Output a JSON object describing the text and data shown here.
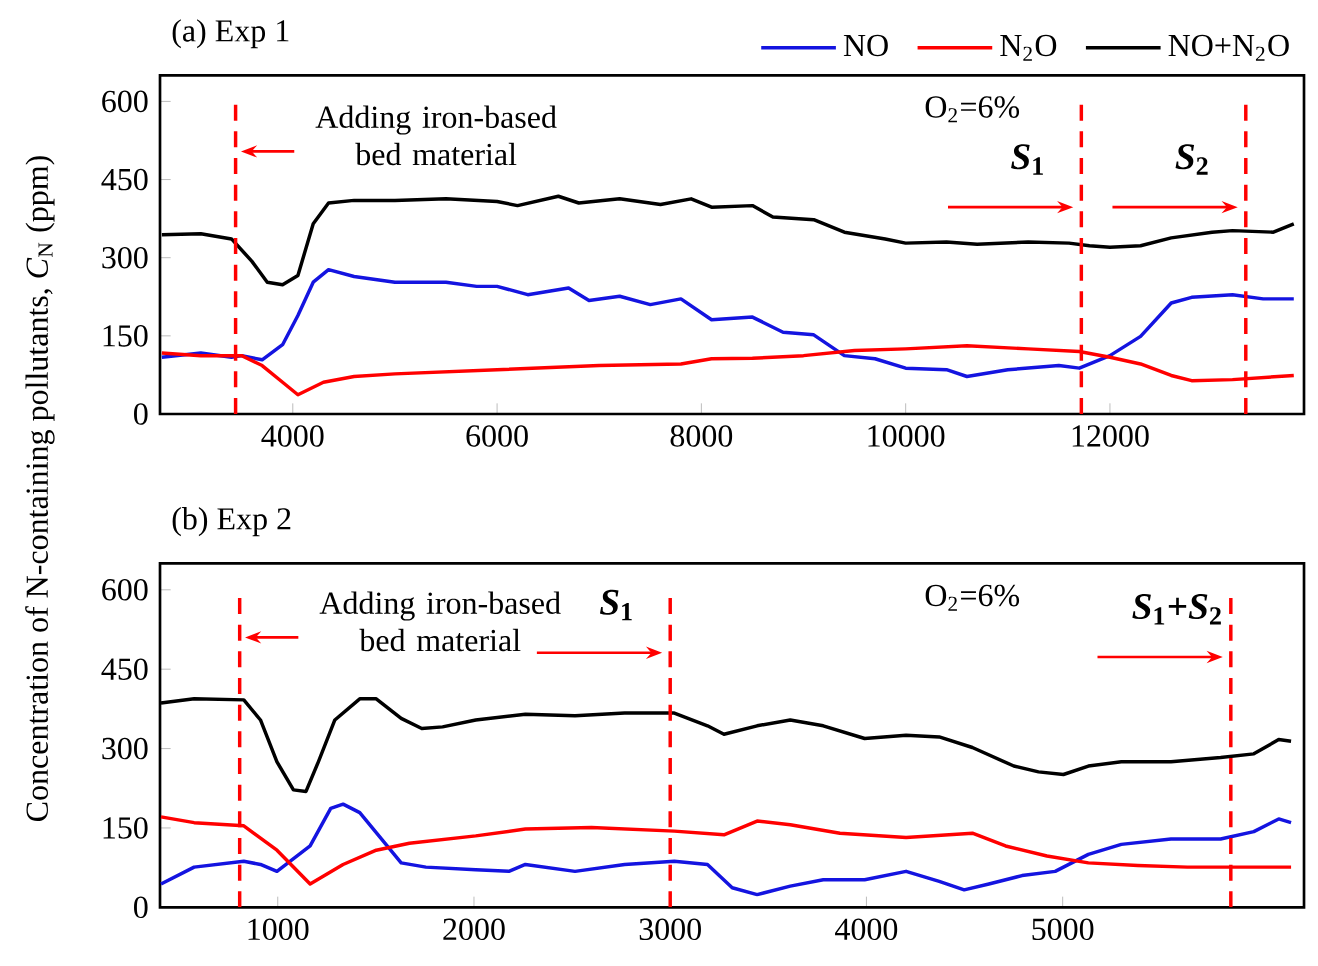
{
  "chart_data": [
    {
      "type": "line",
      "title": "(a) Exp 1",
      "ylabel": "Concentration of N-containing pollutants, *C*$_{N}$ (ppm)",
      "xlim": [
        2700,
        13900
      ],
      "ylim": [
        0,
        650
      ],
      "xticks": [
        4000,
        6000,
        8000,
        10000,
        12000
      ],
      "yticks": [
        0,
        150,
        300,
        450,
        600
      ],
      "legend": "top right",
      "series": [
        {
          "name": "NO",
          "color": "#1414e0",
          "x": [
            2718,
            3100,
            3400,
            3500,
            3700,
            3900,
            4050,
            4200,
            4350,
            4600,
            5000,
            5500,
            5800,
            6000,
            6300,
            6700,
            6900,
            7200,
            7500,
            7800,
            8100,
            8500,
            8800,
            9100,
            9400,
            9700,
            10000,
            10400,
            10600,
            11000,
            11500,
            11700,
            12000,
            12300,
            12600,
            12800,
            13200,
            13500,
            13800
          ],
          "values": [
            109,
            117,
            109,
            112,
            104,
            133,
            189,
            253,
            277,
            264,
            253,
            253,
            245,
            245,
            229,
            242,
            218,
            226,
            210,
            221,
            181,
            186,
            157,
            152,
            112,
            106,
            88,
            85,
            72,
            85,
            93,
            88,
            112,
            149,
            213,
            224,
            229,
            221,
            221
          ]
        },
        {
          "name": "N$_{2}$O",
          "color": "#ff0000",
          "x": [
            2718,
            3100,
            3500,
            3700,
            3900,
            4050,
            4300,
            4600,
            5000,
            6000,
            7000,
            7800,
            8100,
            8500,
            9000,
            9500,
            10000,
            10600,
            11200,
            11700,
            12000,
            12300,
            12600,
            12800,
            13200,
            13800
          ],
          "values": [
            117,
            112,
            112,
            93,
            61,
            37,
            61,
            72,
            77,
            85,
            93,
            96,
            106,
            107,
            112,
            122,
            125,
            131,
            125,
            120,
            109,
            96,
            74,
            64,
            66,
            74
          ]
        },
        {
          "name": "NO+N$_{2}$O",
          "color": "#000000",
          "x": [
            2718,
            3100,
            3400,
            3600,
            3750,
            3900,
            4050,
            4200,
            4350,
            4600,
            5000,
            5500,
            6000,
            6200,
            6600,
            6800,
            7200,
            7600,
            7900,
            8100,
            8500,
            8700,
            9100,
            9400,
            9800,
            10000,
            10400,
            10700,
            11200,
            11600,
            11800,
            12000,
            12300,
            12600,
            13000,
            13200,
            13600,
            13800
          ],
          "values": [
            344,
            346,
            336,
            293,
            253,
            248,
            266,
            365,
            405,
            410,
            410,
            413,
            408,
            400,
            418,
            405,
            413,
            402,
            413,
            397,
            400,
            378,
            373,
            349,
            336,
            328,
            330,
            326,
            330,
            328,
            323,
            320,
            323,
            338,
            349,
            352,
            349,
            365
          ]
        }
      ],
      "ref_lines": [
        {
          "axis": "x",
          "value": 3440,
          "color": "#ff0000",
          "line_style": "dashed"
        },
        {
          "axis": "x",
          "value": 11720,
          "color": "#ff0000",
          "line_style": "dashed"
        },
        {
          "axis": "x",
          "value": 13330,
          "color": "#ff0000",
          "line_style": "dashed"
        }
      ],
      "annotations": [
        {
          "text": "Adding iron-based bed material",
          "x": 3440,
          "y": 504
        },
        "O$_{2}$=6%",
        {
          "text": "*S*$_{1}$",
          "x": 11720,
          "y": 397
        },
        {
          "text": "*S*$_{2}$",
          "x": 13330,
          "y": 397
        }
      ]
    },
    {
      "type": "line",
      "title": "(b) Exp 2",
      "xlim": [
        400,
        6230
      ],
      "ylim": [
        0,
        650
      ],
      "xticks": [
        1000,
        2000,
        3000,
        4000,
        5000
      ],
      "yticks": [
        0,
        150,
        300,
        450,
        600
      ],
      "series": [
        {
          "color": "#1414e0",
          "x": [
            405,
            574,
            827,
            912,
            996,
            1165,
            1270,
            1333,
            1418,
            1629,
            1755,
            2009,
            2178,
            2262,
            2515,
            2768,
            3021,
            3190,
            3316,
            3443,
            3612,
            3780,
            3991,
            4202,
            4371,
            4498,
            4624,
            4793,
            4962,
            5131,
            5299,
            5552,
            5805,
            5974,
            6101,
            6164
          ],
          "values": [
            44,
            76,
            87,
            81,
            68,
            116,
            187,
            195,
            179,
            84,
            76,
            71,
            68,
            81,
            68,
            81,
            87,
            81,
            37,
            24,
            40,
            52,
            52,
            68,
            49,
            33,
            44,
            60,
            68,
            100,
            119,
            129,
            129,
            143,
            167,
            160
          ]
        },
        {
          "color": "#ff0000",
          "x": [
            405,
            574,
            827,
            996,
            1165,
            1333,
            1502,
            1671,
            2009,
            2262,
            2599,
            3021,
            3274,
            3443,
            3612,
            3865,
            4202,
            4540,
            4709,
            4920,
            5131,
            5383,
            5636,
            5889,
            6164
          ],
          "values": [
            171,
            160,
            154,
            108,
            44,
            81,
            108,
            121,
            135,
            148,
            151,
            144,
            137,
            163,
            156,
            140,
            132,
            140,
            116,
            97,
            84,
            79,
            76,
            76,
            76
          ]
        },
        {
          "color": "#000000",
          "x": [
            405,
            574,
            827,
            912,
            996,
            1080,
            1144,
            1207,
            1291,
            1418,
            1502,
            1629,
            1734,
            1840,
            2009,
            2262,
            2515,
            2768,
            3021,
            3190,
            3274,
            3443,
            3612,
            3780,
            3991,
            4202,
            4371,
            4540,
            4751,
            4877,
            5004,
            5131,
            5299,
            5552,
            5805,
            5974,
            6101,
            6164
          ],
          "values": [
            386,
            394,
            392,
            354,
            275,
            222,
            219,
            275,
            354,
            394,
            394,
            357,
            338,
            341,
            354,
            365,
            362,
            367,
            367,
            343,
            327,
            343,
            354,
            343,
            319,
            325,
            322,
            302,
            267,
            256,
            251,
            267,
            275,
            275,
            283,
            290,
            317,
            314
          ]
        }
      ],
      "ref_lines": [
        {
          "axis": "x",
          "value": 806,
          "color": "#ff0000",
          "line_style": "dashed"
        },
        {
          "axis": "x",
          "value": 3000,
          "color": "#ff0000",
          "line_style": "dashed"
        },
        {
          "axis": "x",
          "value": 5857,
          "color": "#ff0000",
          "line_style": "dashed"
        }
      ],
      "annotations": [
        {
          "text": "Adding iron-based bed material",
          "x": 806,
          "y": 510
        },
        "O$_{2}$=6%",
        {
          "text": "*S*$_{1}$",
          "x": 3000,
          "y": 481
        },
        {
          "text": "*S*$_{1}$+*S*$_{2}$",
          "x": 5857,
          "y": 473
        }
      ]
    }
  ]
}
